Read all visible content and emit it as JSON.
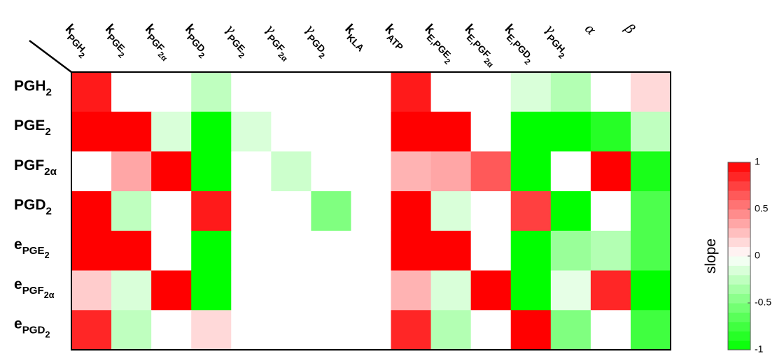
{
  "chart_data": {
    "type": "heatmap",
    "columns": [
      {
        "base": "k",
        "sub": "PGH",
        "sub2": "2"
      },
      {
        "base": "k",
        "sub": "PGE",
        "sub2": "2"
      },
      {
        "base": "k",
        "sub": "PGF",
        "sub2": "2α"
      },
      {
        "base": "k",
        "sub": "PGD",
        "sub2": "2"
      },
      {
        "base": "γ",
        "sub": "PGE",
        "sub2": "2"
      },
      {
        "base": "γ",
        "sub": "PGF",
        "sub2": "2α"
      },
      {
        "base": "γ",
        "sub": "PGD",
        "sub2": "2"
      },
      {
        "base": "k",
        "sub": "KLA"
      },
      {
        "base": "k",
        "sub": "ATP"
      },
      {
        "base": "k",
        "sub": "E,PGE",
        "sub2": "2"
      },
      {
        "base": "k",
        "sub": "E,PGF",
        "sub2": "2α"
      },
      {
        "base": "k",
        "sub": "E,PGD",
        "sub2": "2"
      },
      {
        "base": "γ",
        "sub": "PGH",
        "sub2": "2"
      },
      {
        "base": "α"
      },
      {
        "base": "β"
      }
    ],
    "rows": [
      {
        "base": "PGH",
        "sub": "2"
      },
      {
        "base": "PGE",
        "sub": "2"
      },
      {
        "base": "PGF",
        "sub": "2α"
      },
      {
        "base": "PGD",
        "sub": "2"
      },
      {
        "base": "e",
        "sub": "PGE",
        "sub2": "2"
      },
      {
        "base": "e",
        "sub": "PGF",
        "sub2": "2α"
      },
      {
        "base": "e",
        "sub": "PGD",
        "sub2": "2"
      }
    ],
    "values": [
      [
        0.9,
        0,
        0,
        -0.25,
        0,
        0,
        0,
        0,
        0.9,
        0,
        0,
        -0.15,
        -0.3,
        0,
        0.15
      ],
      [
        1,
        1,
        -0.15,
        -1,
        -0.15,
        0,
        0,
        0,
        1,
        1,
        0,
        -1,
        -1,
        -0.85,
        -0.25
      ],
      [
        0,
        0.35,
        1,
        -1,
        0,
        -0.2,
        0,
        0,
        0.3,
        0.35,
        0.65,
        -1,
        0,
        1,
        -0.9
      ],
      [
        1,
        -0.25,
        0,
        0.9,
        0,
        0,
        -0.5,
        0,
        1,
        -0.15,
        0,
        0.75,
        -1,
        0,
        -0.7
      ],
      [
        1,
        1,
        0,
        -1,
        0,
        0,
        0,
        0,
        1,
        1,
        0,
        -1,
        -0.4,
        -0.3,
        -0.7
      ],
      [
        0.2,
        -0.15,
        1,
        -1,
        0,
        0,
        0,
        0,
        0.3,
        -0.15,
        1,
        -1,
        -0.1,
        0.85,
        -1
      ],
      [
        0.85,
        -0.25,
        0,
        0.15,
        0,
        0,
        0,
        0,
        0.85,
        -0.3,
        0,
        1,
        -0.5,
        0,
        -0.75
      ]
    ],
    "zlim": [
      -1,
      1
    ],
    "colormap": [
      "#00ff00",
      "#ffffff",
      "#ff0000"
    ],
    "levels": 20,
    "colorbar_label": "slope",
    "colorbar_ticks": [
      1,
      0.5,
      0,
      -0.5,
      -1
    ]
  }
}
